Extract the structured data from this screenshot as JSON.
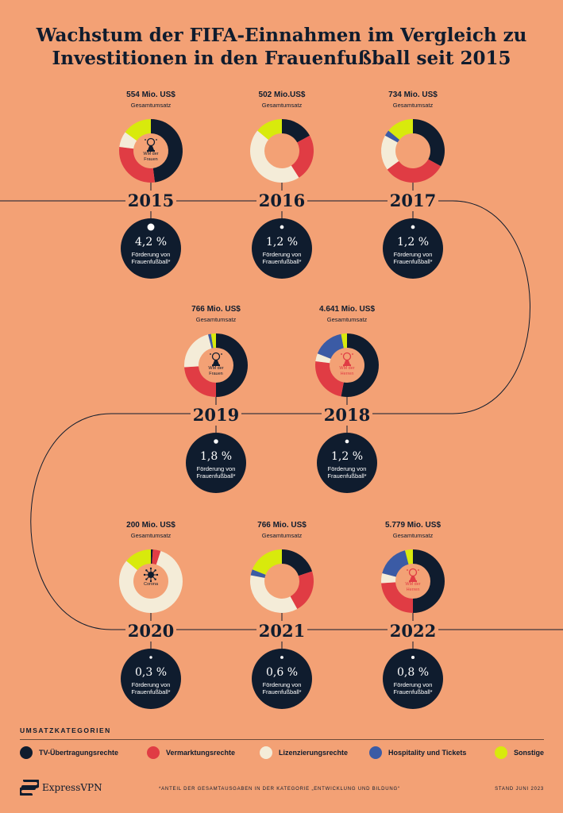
{
  "title": {
    "line1": "Wachstum der FIFA-Einnahmen im Vergleich zu",
    "line2": "Investitionen in den Frauenfußball seit 2015"
  },
  "total_label": "Gesamtumsatz",
  "pct_label_line1": "Förderung von",
  "pct_label_line2": "Frauenfußball*",
  "colors": {
    "background": "#f3a175",
    "TV-Übertragungsrechte": "#0f1c2e",
    "Vermarktungsrechte": "#e03c44",
    "Lizenzierungsrechte": "#f4ecd8",
    "Hospitality und Tickets": "#3b5ba5",
    "Sonstige": "#d8ea0c",
    "women_icon": "#0f1c2e",
    "men_icon": "#e03c44"
  },
  "chart_data": {
    "type": "donut",
    "note_values": "estimated shares of total revenue in percent",
    "categories": [
      "TV-Übertragungsrechte",
      "Vermarktungsrechte",
      "Lizenzierungsrechte",
      "Hospitality und Tickets",
      "Sonstige"
    ],
    "years": [
      {
        "year": "2015",
        "total": "554 Mio. US$",
        "women_share": "4,2 %",
        "women_share_value": 4.2,
        "center": {
          "icon": "trophy-icon",
          "label1": "WM der",
          "label2": "Frauen",
          "style": "women"
        },
        "values": [
          48,
          29,
          8,
          0,
          15
        ]
      },
      {
        "year": "2016",
        "total": "502 Mio.US$",
        "women_share": "1,2 %",
        "women_share_value": 1.2,
        "center": null,
        "values": [
          17,
          24,
          45,
          0,
          14
        ]
      },
      {
        "year": "2017",
        "total": "734 Mio. US$",
        "women_share": "1,2 %",
        "women_share_value": 1.2,
        "center": null,
        "values": [
          33,
          32,
          18,
          3,
          14
        ]
      },
      {
        "year": "2019",
        "total": "766 Mio. US$",
        "women_share": "1,8 %",
        "women_share_value": 1.8,
        "center": {
          "icon": "trophy-icon",
          "label1": "WM der",
          "label2": "Frauen",
          "style": "women"
        },
        "values": [
          50,
          24,
          22,
          1.5,
          2.5
        ]
      },
      {
        "year": "2018",
        "total": "4.641 Mio. US$",
        "women_share": "1,2 %",
        "women_share_value": 1.2,
        "center": {
          "icon": "trophy-icon",
          "label1": "WM der",
          "label2": "Herren",
          "style": "men"
        },
        "values": [
          53,
          24,
          4,
          16,
          3
        ]
      },
      {
        "year": "2020",
        "total": "200 Mio. US$",
        "women_share": "0,3 %",
        "women_share_value": 0.3,
        "center": {
          "icon": "virus-icon",
          "label1": "Corona",
          "label2": "",
          "style": "women"
        },
        "values": [
          1,
          4,
          81,
          0,
          14
        ]
      },
      {
        "year": "2021",
        "total": "766 Mio. US$",
        "women_share": "0,6 %",
        "women_share_value": 0.6,
        "center": null,
        "values": [
          20,
          22,
          36,
          3,
          19
        ]
      },
      {
        "year": "2022",
        "total": "5.779 Mio. US$",
        "women_share": "0,8 %",
        "women_share_value": 0.8,
        "center": {
          "icon": "trophy-icon",
          "label1": "WM der",
          "label2": "Herren",
          "style": "men"
        },
        "values": [
          50,
          24,
          5,
          17,
          4
        ]
      }
    ]
  },
  "legend": {
    "title": "UMSATZKATEGORIEN",
    "items": [
      "TV-Übertragungsrechte",
      "Vermarktungsrechte",
      "Lizenzierungsrechte",
      "Hospitality und Tickets",
      "Sonstige"
    ]
  },
  "footer": {
    "brand": "ExpressVPN",
    "footnote": "*ANTEIL DER GESAMTAUSGABEN IN DER KATEGORIE „ENTWICKLUNG UND BILDUNG“",
    "stand": "STAND JUNI 2023"
  }
}
